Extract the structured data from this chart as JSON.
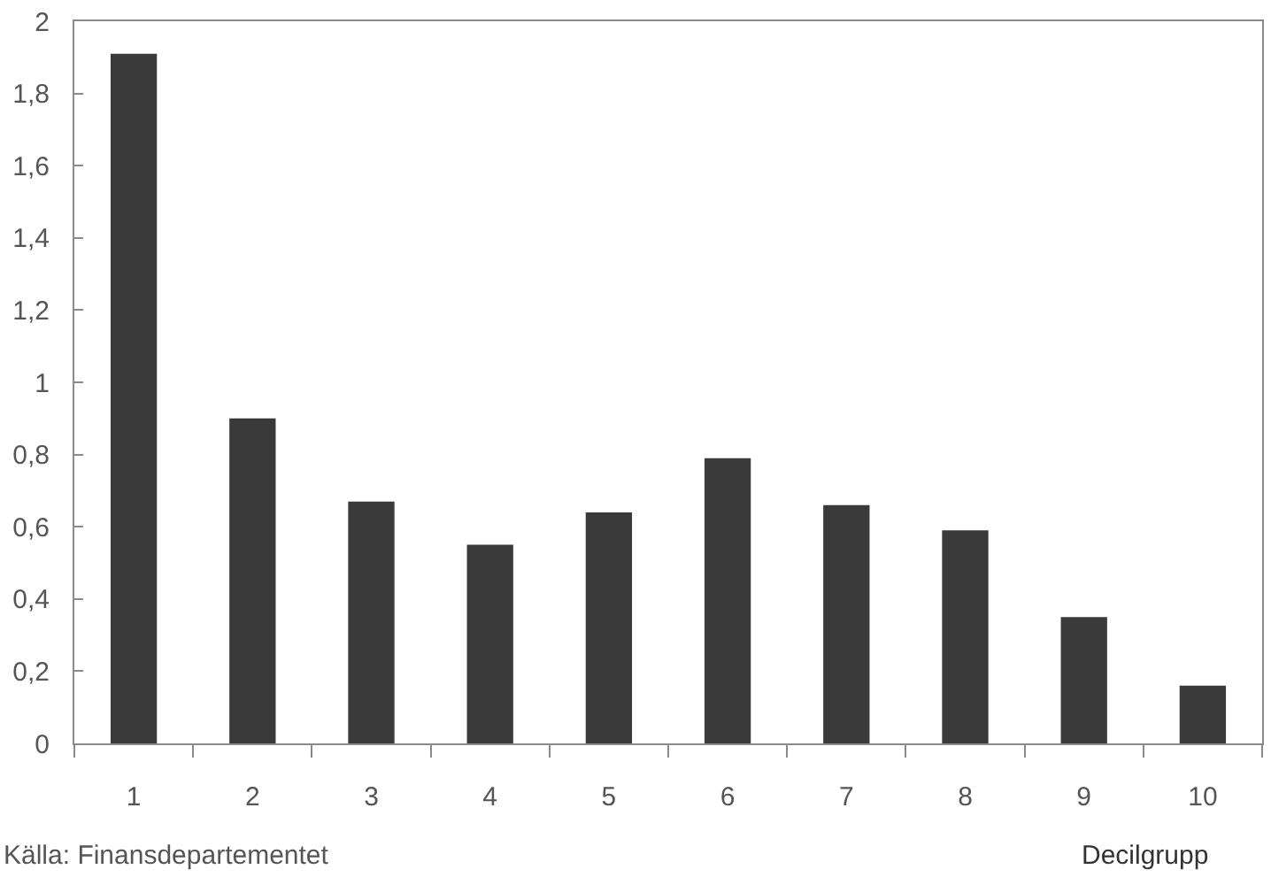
{
  "chart_data": {
    "type": "bar",
    "categories": [
      "1",
      "2",
      "3",
      "4",
      "5",
      "6",
      "7",
      "8",
      "9",
      "10"
    ],
    "values": [
      1.91,
      0.9,
      0.67,
      0.55,
      0.64,
      0.79,
      0.66,
      0.59,
      0.35,
      0.16
    ],
    "color": "#3a3a3a",
    "xlabel": "Decilgrupp",
    "ylim": [
      0,
      2
    ],
    "yticks": [
      0,
      {
        "value": 0.2,
        "label": "0,2"
      },
      {
        "value": 0.4,
        "label": "0,4"
      },
      {
        "value": 0.6,
        "label": "0,6"
      },
      {
        "value": 0.8,
        "label": "0,8"
      },
      1,
      {
        "value": 1.2,
        "label": "1,2"
      },
      {
        "value": 1.4,
        "label": "1,4"
      },
      {
        "value": 1.6,
        "label": "1,6"
      },
      {
        "value": 1.8,
        "label": "1,8"
      },
      2
    ],
    "grid": false,
    "legend": false,
    "annotations": [
      "Källa: Finansdepartementet"
    ]
  }
}
